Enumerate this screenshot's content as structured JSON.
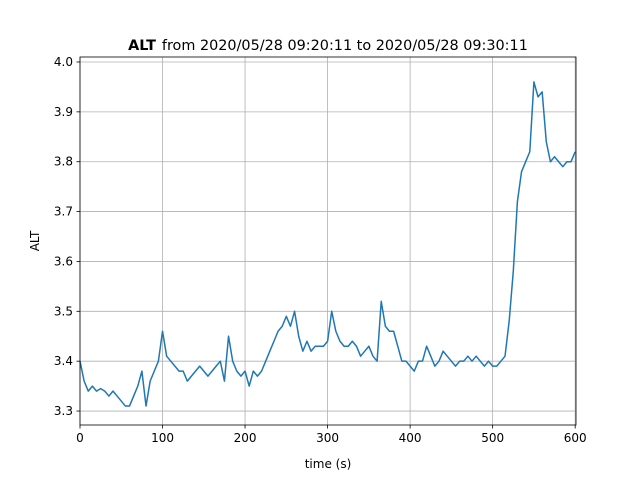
{
  "chart_data": {
    "type": "line",
    "title_bold": "ALT",
    "title": "from 2020/05/28 09:20:11 to 2020/05/28 09:30:11",
    "xlabel": "time (s)",
    "ylabel": "ALT",
    "color": "#1f77b4",
    "grid": true,
    "xlim": [
      0,
      601
    ],
    "ylim": [
      3.272,
      4.01
    ],
    "xticks": [
      0,
      100,
      200,
      300,
      400,
      500,
      600
    ],
    "yticks": [
      3.3,
      3.4,
      3.5,
      3.6,
      3.7,
      3.8,
      3.9,
      {
        "value": 4,
        "label": "4.0"
      }
    ],
    "x": [
      0,
      5,
      10,
      15,
      20,
      25,
      30,
      35,
      40,
      45,
      50,
      55,
      60,
      65,
      70,
      75,
      80,
      85,
      90,
      95,
      100,
      105,
      110,
      115,
      120,
      125,
      130,
      135,
      140,
      145,
      150,
      155,
      160,
      165,
      170,
      175,
      180,
      185,
      190,
      195,
      200,
      205,
      210,
      215,
      220,
      225,
      230,
      235,
      240,
      245,
      250,
      255,
      260,
      265,
      270,
      275,
      280,
      285,
      290,
      295,
      300,
      305,
      310,
      315,
      320,
      325,
      330,
      335,
      340,
      345,
      350,
      355,
      360,
      365,
      370,
      375,
      380,
      385,
      390,
      395,
      400,
      405,
      410,
      415,
      420,
      425,
      430,
      435,
      440,
      445,
      450,
      455,
      460,
      465,
      470,
      475,
      480,
      485,
      490,
      495,
      500,
      505,
      510,
      515,
      520,
      525,
      530,
      535,
      540,
      545,
      550,
      555,
      560,
      565,
      570,
      575,
      580,
      585,
      590,
      595,
      600
    ],
    "series": [
      {
        "color": "#1f77b4",
        "values": [
          3.4,
          3.36,
          3.34,
          3.35,
          3.34,
          3.345,
          3.34,
          3.33,
          3.34,
          3.33,
          3.32,
          3.31,
          3.31,
          3.33,
          3.35,
          3.38,
          3.31,
          3.36,
          3.38,
          3.4,
          3.46,
          3.41,
          3.4,
          3.39,
          3.38,
          3.38,
          3.36,
          3.37,
          3.38,
          3.39,
          3.38,
          3.37,
          3.38,
          3.39,
          3.4,
          3.36,
          3.45,
          3.4,
          3.38,
          3.37,
          3.38,
          3.35,
          3.38,
          3.37,
          3.38,
          3.4,
          3.42,
          3.44,
          3.46,
          3.47,
          3.49,
          3.47,
          3.5,
          3.45,
          3.42,
          3.44,
          3.42,
          3.43,
          3.43,
          3.43,
          3.44,
          3.5,
          3.46,
          3.44,
          3.43,
          3.43,
          3.44,
          3.43,
          3.41,
          3.42,
          3.43,
          3.41,
          3.4,
          3.52,
          3.47,
          3.46,
          3.46,
          3.43,
          3.4,
          3.4,
          3.39,
          3.38,
          3.4,
          3.4,
          3.43,
          3.41,
          3.39,
          3.4,
          3.42,
          3.41,
          3.4,
          3.39,
          3.4,
          3.4,
          3.41,
          3.4,
          3.41,
          3.4,
          3.39,
          3.4,
          3.39,
          3.39,
          3.4,
          3.41,
          3.48,
          3.58,
          3.72,
          3.78,
          3.8,
          3.82,
          3.96,
          3.93,
          3.94,
          3.84,
          3.8,
          3.81,
          3.8,
          3.79,
          3.8,
          3.8,
          3.82
        ]
      }
    ]
  }
}
